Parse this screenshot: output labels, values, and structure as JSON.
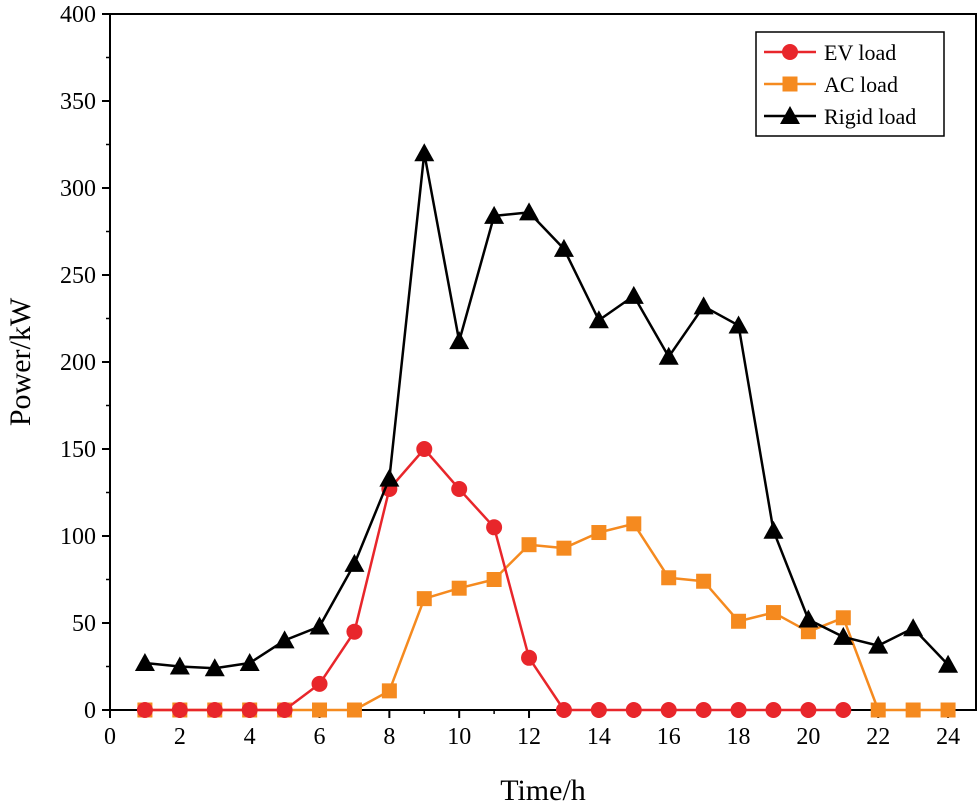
{
  "chart_data": {
    "type": "line",
    "title": "",
    "xlabel": "Time/h",
    "ylabel": "Power/kW",
    "xlim": [
      0,
      24.8
    ],
    "ylim": [
      0,
      400
    ],
    "xticks": [
      0,
      2,
      4,
      6,
      8,
      10,
      12,
      14,
      16,
      18,
      20,
      22,
      24
    ],
    "yticks": [
      0,
      50,
      100,
      150,
      200,
      250,
      300,
      350,
      400
    ],
    "x": [
      1,
      2,
      3,
      4,
      5,
      6,
      7,
      8,
      9,
      10,
      11,
      12,
      13,
      14,
      15,
      16,
      17,
      18,
      19,
      20,
      21,
      22,
      23,
      24
    ],
    "grid": false,
    "legend_position": "top-right",
    "series": [
      {
        "name": "EV load",
        "color": "#e8262b",
        "marker": "circle",
        "values": [
          0,
          0,
          0,
          0,
          0,
          15,
          45,
          127,
          150,
          127,
          105,
          30,
          0,
          0,
          0,
          0,
          0,
          0,
          0,
          0,
          0,
          null,
          null,
          null
        ]
      },
      {
        "name": "AC load",
        "color": "#f58a1f",
        "marker": "square",
        "values": [
          0,
          0,
          0,
          0,
          0,
          0,
          0,
          11,
          64,
          70,
          75,
          95,
          93,
          102,
          107,
          76,
          74,
          51,
          56,
          45,
          53,
          0,
          0,
          0
        ]
      },
      {
        "name": "Rigid load",
        "color": "#000000",
        "marker": "triangle",
        "values": [
          27,
          25,
          24,
          27,
          40,
          48,
          84,
          133,
          320,
          212,
          284,
          286,
          265,
          224,
          238,
          203,
          232,
          221,
          103,
          52,
          42,
          37,
          47,
          26
        ]
      }
    ]
  }
}
